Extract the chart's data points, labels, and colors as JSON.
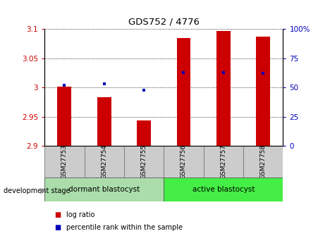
{
  "title": "GDS752 / 4776",
  "samples": [
    "GSM27753",
    "GSM27754",
    "GSM27755",
    "GSM27756",
    "GSM27757",
    "GSM27758"
  ],
  "log_ratio_values": [
    3.002,
    2.983,
    2.943,
    3.085,
    3.097,
    3.087
  ],
  "percentile_ranks": [
    52,
    53,
    48,
    63,
    63,
    62
  ],
  "y_min": 2.9,
  "y_max": 3.1,
  "y_ticks_left": [
    2.9,
    2.95,
    3.0,
    3.05,
    3.1
  ],
  "y_tick_labels_left": [
    "2.9",
    "2.95",
    "3",
    "3.05",
    "3.1"
  ],
  "y_ticks_right": [
    0,
    25,
    50,
    75,
    100
  ],
  "y_tick_labels_right": [
    "0",
    "25",
    "50",
    "75",
    "100%"
  ],
  "bar_color": "#CC0000",
  "dot_color": "#0000BB",
  "bar_width": 0.35,
  "groups": [
    {
      "label": "dormant blastocyst",
      "start": 0,
      "end": 2,
      "color": "#aaddaa"
    },
    {
      "label": "active blastocyst",
      "start": 3,
      "end": 5,
      "color": "#44ee44"
    }
  ],
  "group_label": "development stage",
  "legend_items": [
    {
      "color": "#CC0000",
      "label": "log ratio"
    },
    {
      "color": "#0000BB",
      "label": "percentile rank within the sample"
    }
  ],
  "xlabel_bg": "#cccccc",
  "plot_bg": "#ffffff",
  "left_color": "#CC0000",
  "right_color": "#0000BB"
}
